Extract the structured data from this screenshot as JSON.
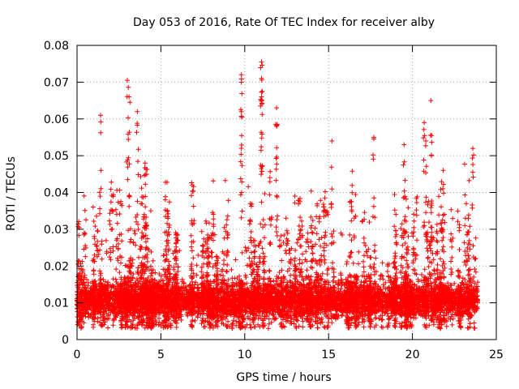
{
  "chart_data": {
    "type": "scatter",
    "title": "Day 053 of 2016, Rate Of TEC Index for receiver alby",
    "xlabel": "GPS time / hours",
    "ylabel": "ROTI / TECUs",
    "xlim": [
      0,
      25
    ],
    "ylim": [
      0,
      0.08
    ],
    "x_ticks": [
      0,
      5,
      10,
      15,
      20,
      25
    ],
    "x_tick_labels": [
      "0",
      "5",
      "10",
      "15",
      "20",
      "25"
    ],
    "y_ticks": [
      0,
      0.01,
      0.02,
      0.03,
      0.04,
      0.05,
      0.06,
      0.07,
      0.08
    ],
    "y_tick_labels": [
      "0",
      "0.01",
      "0.02",
      "0.03",
      "0.04",
      "0.05",
      "0.06",
      "0.07",
      "0.08"
    ],
    "grid": true,
    "grid_style": "dotted",
    "legend": "none",
    "marker": "plus",
    "series": [
      {
        "color": "#ff0000",
        "x_range": [
          0,
          23.9
        ],
        "typical_y_range": [
          0.003,
          0.015
        ],
        "peaks": [
          {
            "x": 3.0,
            "y": 0.0705
          },
          {
            "x": 3.1,
            "y": 0.066
          },
          {
            "x": 1.4,
            "y": 0.061
          },
          {
            "x": 3.6,
            "y": 0.062
          },
          {
            "x": 9.8,
            "y": 0.072
          },
          {
            "x": 9.8,
            "y": 0.062
          },
          {
            "x": 11.0,
            "y": 0.0755
          },
          {
            "x": 11.0,
            "y": 0.071
          },
          {
            "x": 11.0,
            "y": 0.066
          },
          {
            "x": 11.9,
            "y": 0.063
          },
          {
            "x": 11.9,
            "y": 0.058
          },
          {
            "x": 15.2,
            "y": 0.054
          },
          {
            "x": 17.7,
            "y": 0.055
          },
          {
            "x": 19.5,
            "y": 0.053
          },
          {
            "x": 21.1,
            "y": 0.065
          },
          {
            "x": 20.7,
            "y": 0.059
          },
          {
            "x": 20.8,
            "y": 0.054
          },
          {
            "x": 23.6,
            "y": 0.052
          }
        ]
      }
    ]
  }
}
